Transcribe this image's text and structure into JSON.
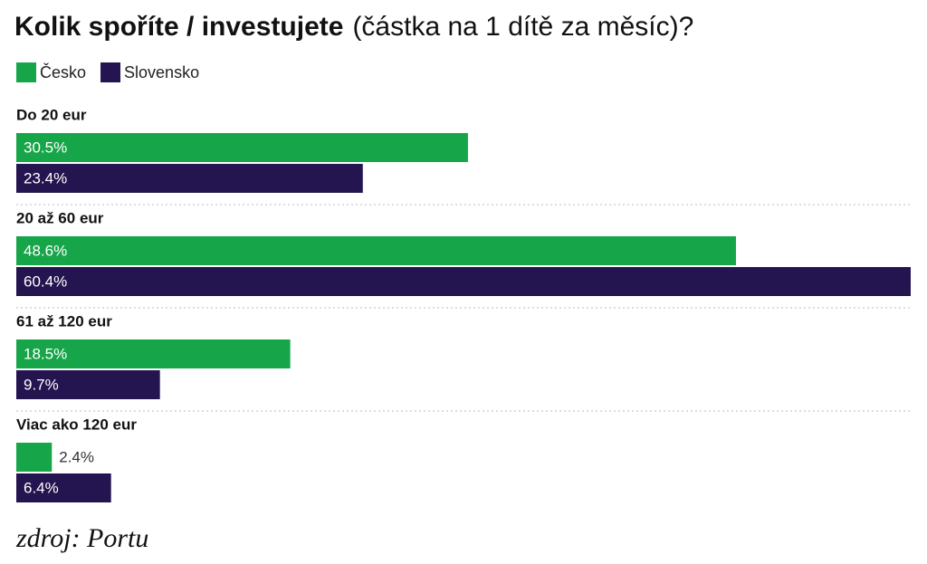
{
  "chart_data": {
    "type": "grouped-horizontal-bar",
    "title": "Kolik spoříte / investujete",
    "subtitle": "(částka na 1 dítě za měsíc)?",
    "categories": [
      "Do 20 eur",
      "20 až 60 eur",
      "61 až 120 eur",
      "Viac ako 120 eur"
    ],
    "series": [
      {
        "name": "Česko",
        "color": "#17a54a",
        "values": [
          30.5,
          48.6,
          18.5,
          2.4
        ],
        "value_labels": [
          "30.5%",
          "48.6%",
          "18.5%",
          "2.4%"
        ]
      },
      {
        "name": "Slovensko",
        "color": "#24144f",
        "values": [
          23.4,
          60.4,
          9.7,
          6.4
        ],
        "value_labels": [
          "23.4%",
          "60.4%",
          "9.7%",
          "6.4%"
        ]
      }
    ],
    "xlim": [
      0,
      60.4
    ],
    "legend": "top-left",
    "source": "zdroj: Portu"
  }
}
